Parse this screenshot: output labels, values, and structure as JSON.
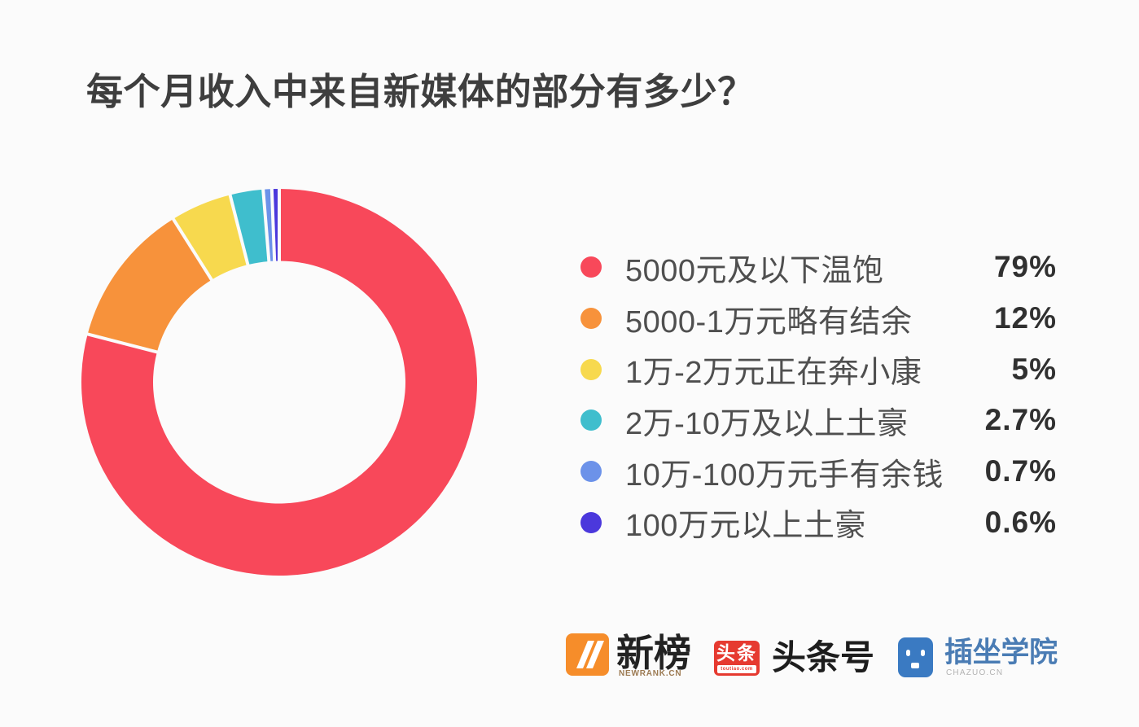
{
  "background": "#FBFBFB",
  "title": "每个月收入中来自新媒体的部分有多少？",
  "chart_data": {
    "type": "pie",
    "subtype": "donut",
    "title": "每个月收入中来自新媒体的部分有多少？",
    "start_angle_deg": 0,
    "direction": "clockwise",
    "legend_position": "right",
    "total_percent": 100,
    "series": [
      {
        "label": "5000元及以下温饱",
        "value": 79,
        "display": "79%",
        "color": "#F8485A"
      },
      {
        "label": "5000-1万元略有结余",
        "value": 12,
        "display": "12%",
        "color": "#F7923B"
      },
      {
        "label": "1万-2万元正在奔小康",
        "value": 5,
        "display": "5%",
        "color": "#F7D94E"
      },
      {
        "label": "2万-10万及以上土豪",
        "value": 2.7,
        "display": "2.7%",
        "color": "#3FBECD"
      },
      {
        "label": "10万-100万元手有余钱",
        "value": 0.7,
        "display": "0.7%",
        "color": "#6C92E9"
      },
      {
        "label": "100万元以上土豪",
        "value": 0.6,
        "display": "0.6%",
        "color": "#4B38DC"
      }
    ]
  },
  "footer": {
    "newrank": {
      "name": "新榜",
      "sub": "NEWRANK.CN",
      "brand_color": "#F68D2A"
    },
    "toutiao": {
      "badge": "头条",
      "badge_sub": "toutiao.com",
      "name": "头条号",
      "brand_color": "#E63A30"
    },
    "chazuo": {
      "name": "插坐学院",
      "sub": "CHAZUO.CN",
      "brand_color": "#3A7AC2"
    }
  }
}
